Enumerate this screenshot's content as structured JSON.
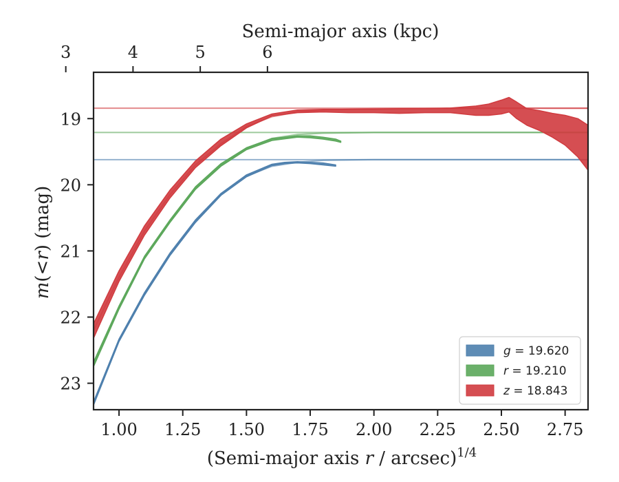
{
  "chart_data": {
    "type": "line",
    "xlabel_main": "(Semi-major axis ",
    "xlabel_var": "r",
    "xlabel_tail": " / arcsec)",
    "xlabel_exp": "1/4",
    "ylabel_var1": "m",
    "ylabel_paren": "(",
    "ylabel_op": "<",
    "ylabel_var2": "r",
    "ylabel_tail": ") (mag)",
    "top_xlabel": "Semi-major axis (kpc)",
    "xlim": [
      0.9,
      2.84
    ],
    "ylim": [
      23.4,
      18.3
    ],
    "x_ticks": [
      "1.00",
      "1.25",
      "1.50",
      "1.75",
      "2.00",
      "2.25",
      "2.50",
      "2.75"
    ],
    "y_ticks": [
      "19",
      "20",
      "21",
      "22",
      "23"
    ],
    "top_ticks": [
      "3",
      "4",
      "5",
      "6"
    ],
    "legend_position": "lower-right",
    "series": [
      {
        "band": "g",
        "name_var": "g",
        "name_val": " = 19.620",
        "color": "#4d7fad",
        "asymptote": 19.62,
        "model_x": [
          0.9,
          1.0,
          1.1,
          1.2,
          1.3,
          1.4,
          1.5,
          1.6,
          1.7,
          1.8,
          2.0,
          2.4,
          2.84
        ],
        "model_y": [
          23.3,
          22.35,
          21.65,
          21.05,
          20.55,
          20.15,
          19.87,
          19.72,
          19.66,
          19.63,
          19.62,
          19.62,
          19.62
        ],
        "profile_x": [
          0.9,
          1.0,
          1.1,
          1.2,
          1.3,
          1.4,
          1.5,
          1.6,
          1.65,
          1.7,
          1.75,
          1.8,
          1.85
        ],
        "profile_lo": [
          23.33,
          22.37,
          21.67,
          21.07,
          20.57,
          20.16,
          19.88,
          19.71,
          19.68,
          19.67,
          19.68,
          19.7,
          19.72
        ],
        "profile_hi": [
          23.28,
          22.33,
          21.63,
          21.03,
          20.53,
          20.13,
          19.85,
          19.69,
          19.66,
          19.65,
          19.66,
          19.67,
          19.7
        ]
      },
      {
        "band": "r",
        "name_var": "r",
        "name_val": " = 19.210",
        "color": "#5ba75a",
        "asymptote": 19.21,
        "model_x": [
          0.9,
          1.0,
          1.1,
          1.2,
          1.3,
          1.4,
          1.5,
          1.6,
          1.7,
          1.8,
          2.0,
          2.4,
          2.84
        ],
        "model_y": [
          22.7,
          21.85,
          21.1,
          20.55,
          20.05,
          19.7,
          19.45,
          19.3,
          19.24,
          19.22,
          19.21,
          19.21,
          19.21
        ],
        "profile_x": [
          0.9,
          1.0,
          1.1,
          1.2,
          1.3,
          1.4,
          1.5,
          1.6,
          1.7,
          1.75,
          1.8,
          1.85,
          1.87
        ],
        "profile_lo": [
          22.75,
          21.88,
          21.12,
          20.57,
          20.07,
          19.72,
          19.47,
          19.33,
          19.28,
          19.29,
          19.31,
          19.34,
          19.36
        ],
        "profile_hi": [
          22.68,
          21.83,
          21.08,
          20.53,
          20.03,
          19.68,
          19.44,
          19.3,
          19.26,
          19.26,
          19.28,
          19.31,
          19.34
        ]
      },
      {
        "band": "z",
        "name_var": "z",
        "name_val": " = 18.843",
        "color": "#d03b3f",
        "asymptote": 18.843,
        "model_x": [
          0.9,
          1.0,
          1.1,
          1.2,
          1.3,
          1.4,
          1.5,
          1.6,
          1.7,
          1.8,
          2.0,
          2.4,
          2.84
        ],
        "model_y": [
          22.2,
          21.4,
          20.7,
          20.15,
          19.7,
          19.38,
          19.12,
          18.97,
          18.9,
          18.87,
          18.85,
          18.843,
          18.843
        ],
        "profile_x": [
          0.9,
          1.0,
          1.1,
          1.2,
          1.3,
          1.4,
          1.5,
          1.6,
          1.7,
          1.8,
          1.9,
          2.0,
          2.1,
          2.2,
          2.3,
          2.4,
          2.45,
          2.5,
          2.53,
          2.56,
          2.6,
          2.65,
          2.7,
          2.75,
          2.8,
          2.84
        ],
        "profile_lo": [
          22.32,
          21.46,
          20.76,
          20.2,
          19.74,
          19.41,
          19.14,
          18.96,
          18.91,
          18.9,
          18.91,
          18.91,
          18.92,
          18.91,
          18.91,
          18.95,
          18.95,
          18.93,
          18.9,
          19.0,
          19.1,
          19.18,
          19.28,
          19.4,
          19.58,
          19.78
        ],
        "profile_hi": [
          22.1,
          21.3,
          20.62,
          20.08,
          19.64,
          19.31,
          19.08,
          18.93,
          18.87,
          18.86,
          18.86,
          18.86,
          18.85,
          18.85,
          18.84,
          18.81,
          18.78,
          18.72,
          18.68,
          18.75,
          18.85,
          18.88,
          18.92,
          18.95,
          19.0,
          19.1
        ]
      }
    ]
  }
}
